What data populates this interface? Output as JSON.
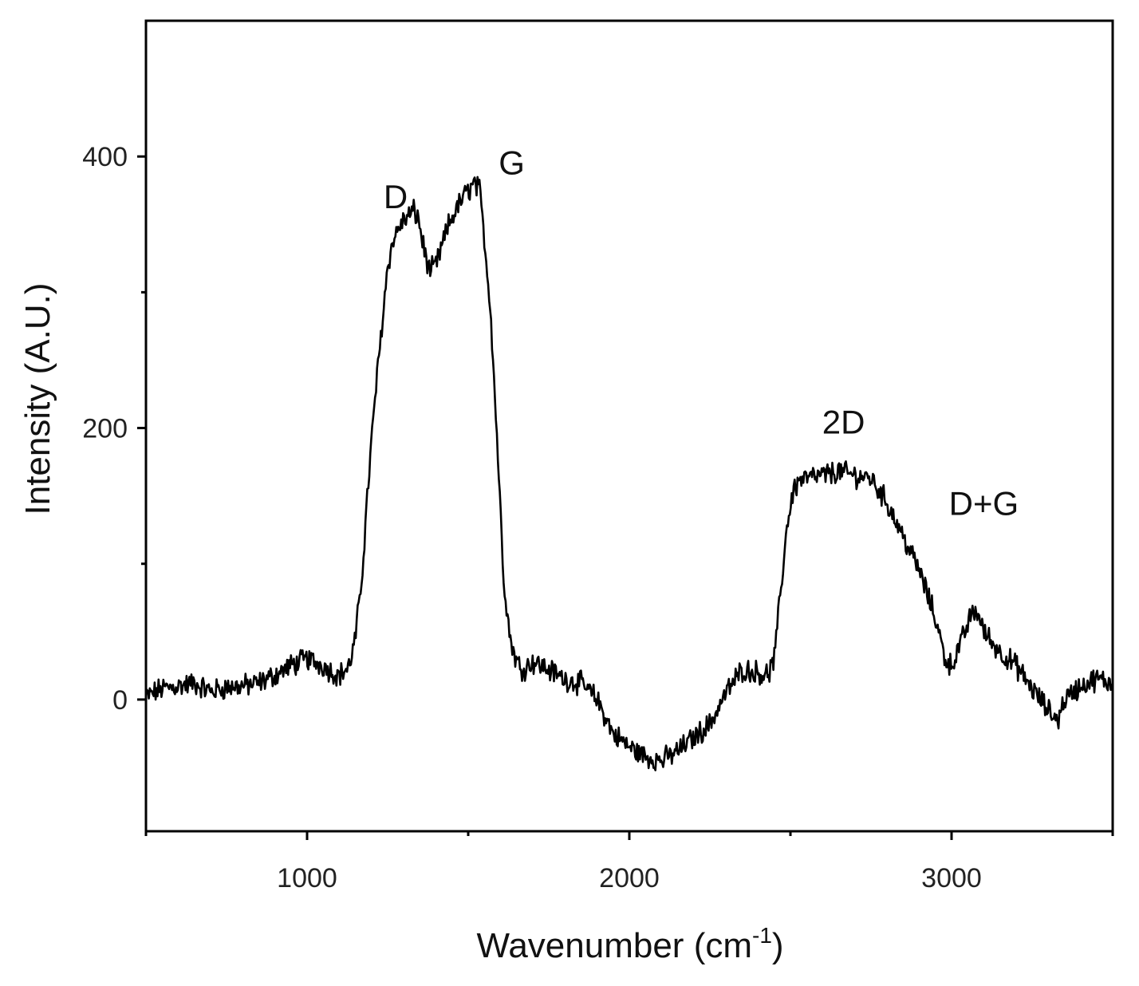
{
  "chart_data": {
    "type": "line",
    "xlabel_main": "Wavenumber (cm",
    "xlabel_sup": "-1",
    "xlabel_end": ")",
    "ylabel": "Intensity (A.U.)",
    "xlim": [
      500,
      3500
    ],
    "ylim": [
      -97,
      500
    ],
    "x_major_ticks": [
      1000,
      2000,
      3000
    ],
    "x_minor_ticks": [
      500,
      1500,
      2500,
      3500
    ],
    "y_major_ticks": [
      0,
      200,
      400
    ],
    "y_minor_ticks": [
      100,
      300
    ],
    "grid": false,
    "line_color": "#000000",
    "annotations": [
      {
        "text": "D",
        "x": 1275,
        "y": 362
      },
      {
        "text": "G",
        "x": 1635,
        "y": 387
      },
      {
        "text": "2D",
        "x": 2665,
        "y": 196
      },
      {
        "text": "D+G",
        "x": 3100,
        "y": 136
      }
    ],
    "series": [
      {
        "x": [
          500,
          550,
          600,
          650,
          700,
          750,
          800,
          850,
          900,
          950,
          1000,
          1050,
          1080,
          1100,
          1130,
          1150,
          1170,
          1190,
          1210,
          1230,
          1250,
          1270,
          1290,
          1310,
          1330,
          1345,
          1360,
          1380,
          1400,
          1420,
          1440,
          1460,
          1480,
          1500,
          1520,
          1535,
          1550,
          1570,
          1590,
          1610,
          1630,
          1650,
          1670,
          1700,
          1750,
          1800,
          1850,
          1900,
          1950,
          2000,
          2050,
          2100,
          2150,
          2200,
          2250,
          2300,
          2350,
          2400,
          2430,
          2450,
          2470,
          2490,
          2510,
          2530,
          2600,
          2650,
          2700,
          2750,
          2800,
          2850,
          2900,
          2950,
          2980,
          3000,
          3030,
          3060,
          3080,
          3100,
          3150,
          3200,
          3250,
          3300,
          3330,
          3350,
          3400,
          3450,
          3500
        ],
        "y": [
          2,
          8,
          10,
          12,
          6,
          9,
          10,
          12,
          18,
          25,
          30,
          25,
          20,
          18,
          24,
          45,
          90,
          160,
          220,
          270,
          320,
          340,
          350,
          355,
          360,
          355,
          335,
          315,
          320,
          335,
          350,
          360,
          368,
          375,
          380,
          375,
          340,
          285,
          190,
          90,
          45,
          28,
          22,
          28,
          22,
          15,
          12,
          0,
          -25,
          -35,
          -42,
          -45,
          -38,
          -28,
          -18,
          5,
          22,
          20,
          18,
          30,
          80,
          130,
          155,
          162,
          165,
          168,
          165,
          163,
          145,
          120,
          95,
          60,
          30,
          25,
          42,
          62,
          65,
          50,
          35,
          25,
          8,
          -8,
          -15,
          0,
          10,
          15,
          12
        ]
      }
    ]
  }
}
